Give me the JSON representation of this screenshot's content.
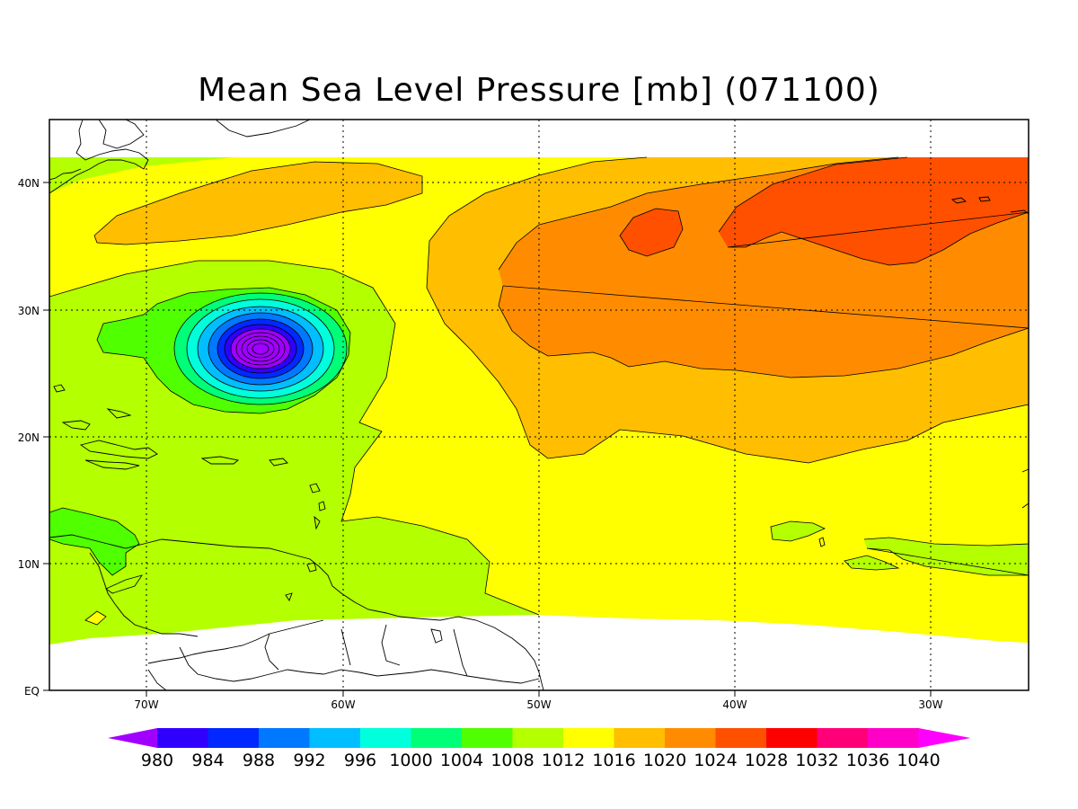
{
  "title": "Mean Sea Level Pressure [mb] (071100)",
  "lat_labels": [
    "40N",
    "30N",
    "20N",
    "10N",
    "EQ"
  ],
  "lon_labels": [
    "70W",
    "60W",
    "50W",
    "40W",
    "30W"
  ],
  "colorbar": {
    "labels": [
      "980",
      "984",
      "988",
      "992",
      "996",
      "1000",
      "1004",
      "1008",
      "1012",
      "1016",
      "1020",
      "1024",
      "1028",
      "1032",
      "1036",
      "1040"
    ],
    "colors": [
      "#a000ff",
      "#3000ff",
      "#0028ff",
      "#0078ff",
      "#00beff",
      "#00ffdc",
      "#00ff78",
      "#50ff00",
      "#b4ff00",
      "#ffff00",
      "#ffbe00",
      "#ff8c00",
      "#ff5000",
      "#ff0000",
      "#ff0078",
      "#ff00c8",
      "#ff00ff"
    ]
  },
  "colors": {
    "c1004": "#50ff00",
    "c1008": "#b4ff00",
    "c1012": "#ffff00",
    "c1016": "#ffbe00",
    "c1020": "#ff8c00",
    "c1024": "#ff5000"
  }
}
